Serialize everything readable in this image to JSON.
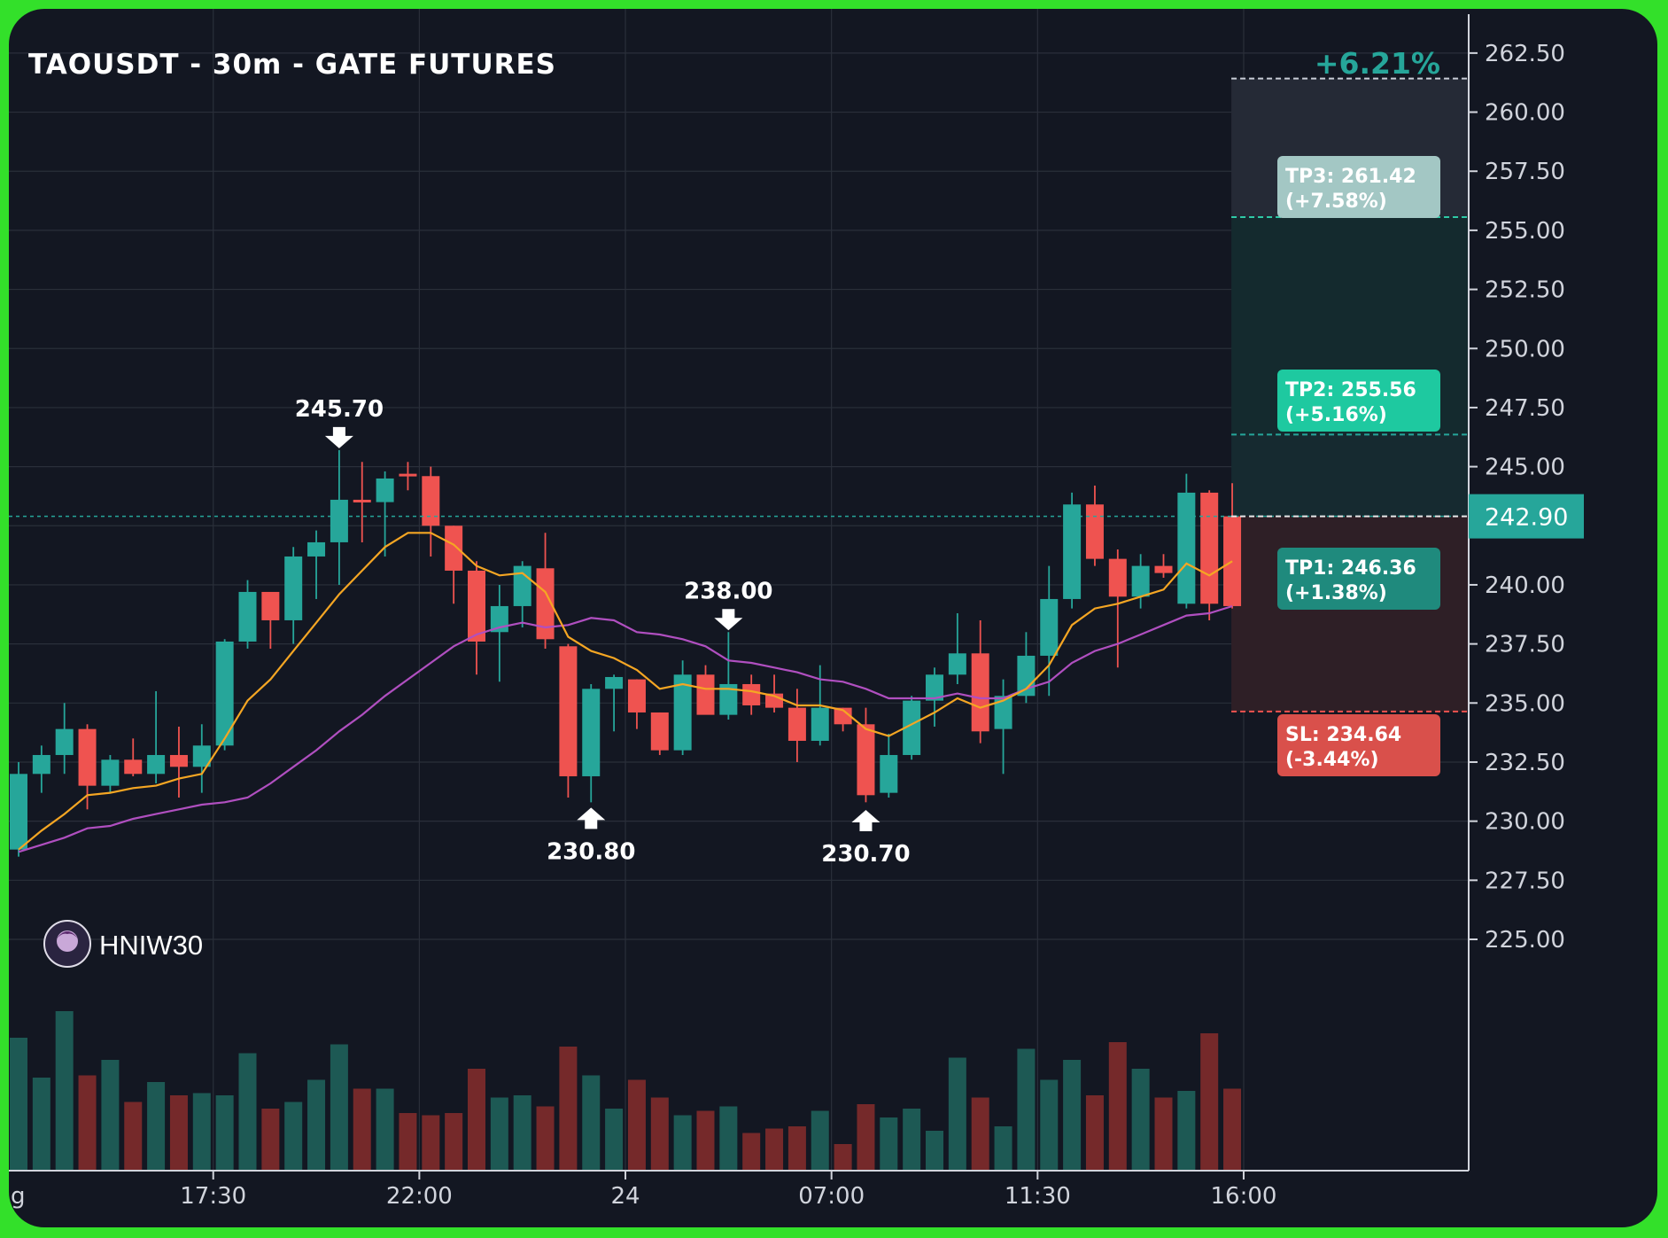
{
  "chart_data": {
    "type": "candlestick",
    "title": "TAOUSDT - 30m - GATE FUTURES",
    "watermark": "HNIW30",
    "ylim": [
      222.5,
      264.0
    ],
    "y_ticks": [
      262.5,
      260.0,
      257.5,
      255.0,
      252.5,
      250.0,
      247.5,
      245.0,
      240.0,
      237.5,
      235.0,
      232.5,
      230.0,
      227.5,
      225.0
    ],
    "y_tick_labels": [
      "262.50",
      "260.00",
      "257.50",
      "255.00",
      "252.50",
      "250.00",
      "247.50",
      "245.00",
      "240.00",
      "237.50",
      "235.00",
      "232.50",
      "230.00",
      "227.50",
      "225.00"
    ],
    "x_tick_labels": [
      {
        "index": 8.5,
        "label": "17:30"
      },
      {
        "index": 17.5,
        "label": "22:00"
      },
      {
        "index": 26.5,
        "label": "24"
      },
      {
        "index": 35.5,
        "label": "07:00"
      },
      {
        "index": 44.5,
        "label": "11:30"
      },
      {
        "index": 53.5,
        "label": "16:00"
      }
    ],
    "x_edge_label": "g",
    "current_price": {
      "value": 242.9,
      "label": "242.90"
    },
    "position": {
      "change_label": "+6.21%",
      "take_profits": [
        {
          "name": "TP3",
          "value": 261.42,
          "label_line1": "TP3: 261.42",
          "label_line2": "(+7.58%)",
          "color": "#a3c7c4"
        },
        {
          "name": "TP2",
          "value": 255.56,
          "label_line1": "TP2: 255.56",
          "label_line2": "(+5.16%)",
          "color": "#1ec9a0"
        },
        {
          "name": "TP1",
          "value": 246.36,
          "label_line1": "TP1: 246.36",
          "label_line2": "(+1.38%)",
          "color": "#1f8a7d"
        }
      ],
      "stop_loss": {
        "value": 234.64,
        "label_line1": "SL: 234.64",
        "label_line2": "(-3.44%)",
        "color": "#d9504b"
      }
    },
    "annotations": [
      {
        "index": 14,
        "value": 245.7,
        "label": "245.70",
        "direction": "down"
      },
      {
        "index": 25,
        "value": 230.8,
        "label": "230.80",
        "direction": "up"
      },
      {
        "index": 31,
        "value": 238.0,
        "label": "238.00",
        "direction": "down"
      },
      {
        "index": 37,
        "value": 230.7,
        "label": "230.70",
        "direction": "up"
      }
    ],
    "colors": {
      "up": "#26a69a",
      "down": "#ef5350",
      "ma_fast": "#f5a623",
      "ma_slow": "#b04fc0",
      "background": "#131722"
    },
    "candles": [
      {
        "o": 228.8,
        "h": 232.5,
        "l": 228.5,
        "c": 232.0,
        "v": 0.6
      },
      {
        "o": 232.0,
        "h": 233.2,
        "l": 231.2,
        "c": 232.8,
        "v": 0.42
      },
      {
        "o": 232.8,
        "h": 235.0,
        "l": 232.0,
        "c": 233.9,
        "v": 0.72
      },
      {
        "o": 233.9,
        "h": 234.1,
        "l": 230.5,
        "c": 231.5,
        "v": 0.43
      },
      {
        "o": 231.5,
        "h": 232.8,
        "l": 231.2,
        "c": 232.6,
        "v": 0.5
      },
      {
        "o": 232.6,
        "h": 233.5,
        "l": 231.9,
        "c": 232.0,
        "v": 0.31
      },
      {
        "o": 232.0,
        "h": 235.5,
        "l": 231.6,
        "c": 232.8,
        "v": 0.4
      },
      {
        "o": 232.8,
        "h": 234.0,
        "l": 231.0,
        "c": 232.3,
        "v": 0.34
      },
      {
        "o": 232.3,
        "h": 234.1,
        "l": 231.2,
        "c": 233.2,
        "v": 0.35
      },
      {
        "o": 233.2,
        "h": 237.7,
        "l": 233.0,
        "c": 237.6,
        "v": 0.34
      },
      {
        "o": 237.6,
        "h": 240.2,
        "l": 237.3,
        "c": 239.7,
        "v": 0.53
      },
      {
        "o": 239.7,
        "h": 239.7,
        "l": 237.3,
        "c": 238.5,
        "v": 0.28
      },
      {
        "o": 238.5,
        "h": 241.6,
        "l": 237.5,
        "c": 241.2,
        "v": 0.31
      },
      {
        "o": 241.2,
        "h": 242.3,
        "l": 239.4,
        "c": 241.8,
        "v": 0.41
      },
      {
        "o": 241.8,
        "h": 245.7,
        "l": 240.0,
        "c": 243.6,
        "v": 0.57
      },
      {
        "o": 243.6,
        "h": 245.2,
        "l": 241.8,
        "c": 243.5,
        "v": 0.37
      },
      {
        "o": 243.5,
        "h": 244.8,
        "l": 241.2,
        "c": 244.5,
        "v": 0.37
      },
      {
        "o": 244.7,
        "h": 245.2,
        "l": 244.0,
        "c": 244.6,
        "v": 0.26
      },
      {
        "o": 244.6,
        "h": 245.0,
        "l": 241.2,
        "c": 242.5,
        "v": 0.25
      },
      {
        "o": 242.5,
        "h": 242.5,
        "l": 239.2,
        "c": 240.6,
        "v": 0.26
      },
      {
        "o": 240.6,
        "h": 241.0,
        "l": 236.2,
        "c": 237.6,
        "v": 0.46
      },
      {
        "o": 238.0,
        "h": 240.0,
        "l": 235.9,
        "c": 239.1,
        "v": 0.33
      },
      {
        "o": 239.1,
        "h": 241.0,
        "l": 238.2,
        "c": 240.8,
        "v": 0.34
      },
      {
        "o": 240.7,
        "h": 242.2,
        "l": 237.3,
        "c": 237.7,
        "v": 0.29
      },
      {
        "o": 237.4,
        "h": 237.5,
        "l": 231.0,
        "c": 231.9,
        "v": 0.56
      },
      {
        "o": 231.9,
        "h": 235.8,
        "l": 230.8,
        "c": 235.6,
        "v": 0.43
      },
      {
        "o": 235.6,
        "h": 236.2,
        "l": 233.8,
        "c": 236.1,
        "v": 0.28
      },
      {
        "o": 236.0,
        "h": 236.0,
        "l": 233.9,
        "c": 234.6,
        "v": 0.41
      },
      {
        "o": 234.6,
        "h": 234.6,
        "l": 232.8,
        "c": 233.0,
        "v": 0.33
      },
      {
        "o": 233.0,
        "h": 236.8,
        "l": 232.8,
        "c": 236.2,
        "v": 0.25
      },
      {
        "o": 236.2,
        "h": 236.6,
        "l": 234.8,
        "c": 234.5,
        "v": 0.27
      },
      {
        "o": 234.5,
        "h": 238.0,
        "l": 234.3,
        "c": 235.8,
        "v": 0.29
      },
      {
        "o": 235.8,
        "h": 236.2,
        "l": 234.5,
        "c": 234.9,
        "v": 0.17
      },
      {
        "o": 235.4,
        "h": 236.2,
        "l": 234.6,
        "c": 234.8,
        "v": 0.19
      },
      {
        "o": 234.8,
        "h": 235.6,
        "l": 232.5,
        "c": 233.4,
        "v": 0.2
      },
      {
        "o": 233.4,
        "h": 236.6,
        "l": 233.2,
        "c": 234.8,
        "v": 0.27
      },
      {
        "o": 234.8,
        "h": 234.8,
        "l": 233.8,
        "c": 234.1,
        "v": 0.12
      },
      {
        "o": 234.1,
        "h": 234.8,
        "l": 230.8,
        "c": 231.1,
        "v": 0.3
      },
      {
        "o": 231.2,
        "h": 233.7,
        "l": 231.0,
        "c": 232.8,
        "v": 0.24
      },
      {
        "o": 232.8,
        "h": 235.3,
        "l": 232.6,
        "c": 235.1,
        "v": 0.28
      },
      {
        "o": 235.1,
        "h": 236.5,
        "l": 234.0,
        "c": 236.2,
        "v": 0.18
      },
      {
        "o": 236.2,
        "h": 238.8,
        "l": 235.8,
        "c": 237.1,
        "v": 0.51
      },
      {
        "o": 237.1,
        "h": 238.5,
        "l": 233.3,
        "c": 233.8,
        "v": 0.33
      },
      {
        "o": 233.9,
        "h": 236.0,
        "l": 232.0,
        "c": 235.3,
        "v": 0.2
      },
      {
        "o": 235.3,
        "h": 238.0,
        "l": 235.0,
        "c": 237.0,
        "v": 0.55
      },
      {
        "o": 237.0,
        "h": 240.8,
        "l": 235.3,
        "c": 239.4,
        "v": 0.41
      },
      {
        "o": 239.4,
        "h": 243.9,
        "l": 239.0,
        "c": 243.4,
        "v": 0.5
      },
      {
        "o": 243.4,
        "h": 244.2,
        "l": 240.8,
        "c": 241.1,
        "v": 0.34
      },
      {
        "o": 241.1,
        "h": 241.5,
        "l": 236.5,
        "c": 239.5,
        "v": 0.58
      },
      {
        "o": 239.5,
        "h": 241.3,
        "l": 239.0,
        "c": 240.8,
        "v": 0.46
      },
      {
        "o": 240.8,
        "h": 241.3,
        "l": 240.3,
        "c": 240.5,
        "v": 0.33
      },
      {
        "o": 239.2,
        "h": 244.7,
        "l": 239.0,
        "c": 243.9,
        "v": 0.36
      },
      {
        "o": 243.9,
        "h": 244.0,
        "l": 238.5,
        "c": 239.2,
        "v": 0.62
      },
      {
        "o": 242.9,
        "h": 244.3,
        "l": 239.0,
        "c": 239.1,
        "v": 0.37
      }
    ],
    "ma_fast": [
      228.8,
      229.6,
      230.3,
      231.1,
      231.2,
      231.4,
      231.5,
      231.8,
      232.0,
      233.5,
      235.1,
      236.0,
      237.2,
      238.4,
      239.6,
      240.6,
      241.6,
      242.2,
      242.2,
      241.7,
      240.8,
      240.4,
      240.5,
      239.7,
      237.8,
      237.2,
      236.9,
      236.4,
      235.6,
      235.8,
      235.6,
      235.6,
      235.5,
      235.3,
      234.9,
      234.9,
      234.7,
      233.9,
      233.6,
      234.1,
      234.6,
      235.2,
      234.8,
      235.1,
      235.6,
      236.6,
      238.3,
      239.0,
      239.2,
      239.5,
      239.8,
      240.9,
      240.4,
      241.0
    ],
    "ma_slow": [
      228.7,
      229.0,
      229.3,
      229.7,
      229.8,
      230.1,
      230.3,
      230.5,
      230.7,
      230.8,
      231.0,
      231.6,
      232.3,
      233.0,
      233.8,
      234.5,
      235.3,
      236.0,
      236.7,
      237.4,
      237.9,
      238.2,
      238.4,
      238.2,
      238.3,
      238.6,
      238.5,
      238.0,
      237.9,
      237.7,
      237.4,
      236.8,
      236.7,
      236.5,
      236.3,
      236.0,
      235.9,
      235.6,
      235.2,
      235.2,
      235.2,
      235.4,
      235.2,
      235.2,
      235.6,
      235.9,
      236.7,
      237.2,
      237.5,
      237.9,
      238.3,
      238.7,
      238.8,
      239.1
    ]
  }
}
